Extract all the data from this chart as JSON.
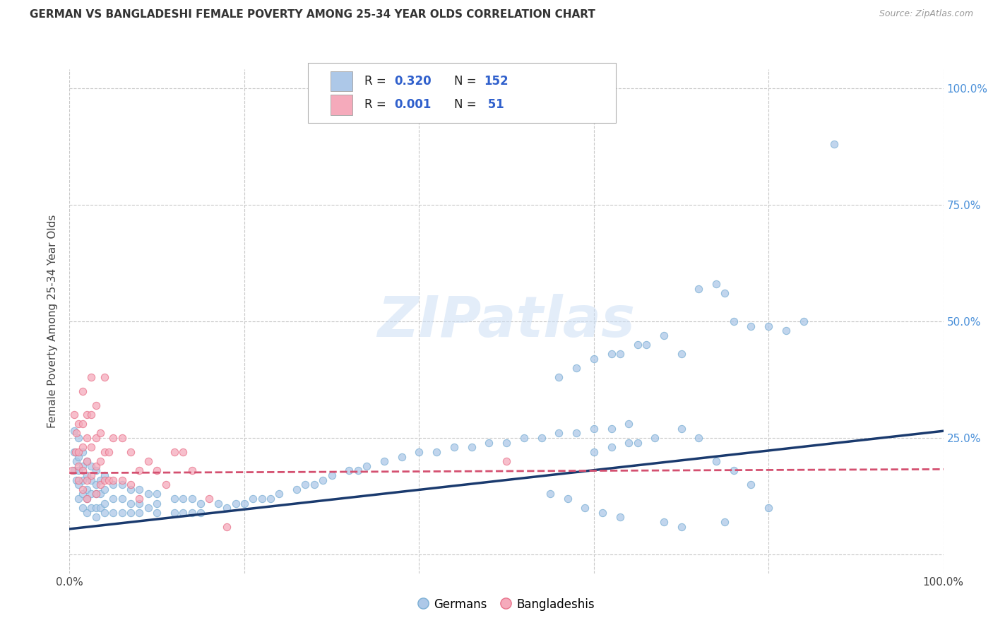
{
  "title": "GERMAN VS BANGLADESHI FEMALE POVERTY AMONG 25-34 YEAR OLDS CORRELATION CHART",
  "source": "Source: ZipAtlas.com",
  "ylabel": "Female Poverty Among 25-34 Year Olds",
  "watermark": "ZIPatlas",
  "blue_color": "#7bafd4",
  "pink_color": "#e8728a",
  "blue_fill": "#adc8e8",
  "pink_fill": "#f5aabb",
  "blue_line_color": "#1a3a6e",
  "pink_line_color": "#d45070",
  "background_color": "#ffffff",
  "grid_color": "#c8c8c8",
  "title_color": "#333333",
  "source_color": "#999999",
  "right_axis_color": "#4a90d9",
  "scatter_alpha": 0.75,
  "scatter_size": 55,
  "xmin": 0.0,
  "xmax": 1.0,
  "ymin": -0.04,
  "ymax": 1.04,
  "german_trend_x": [
    0.0,
    1.0
  ],
  "german_trend_y": [
    0.055,
    0.265
  ],
  "bangla_trend_x": [
    0.0,
    1.0
  ],
  "bangla_trend_y": [
    0.175,
    0.183
  ],
  "german_x": [
    0.005,
    0.005,
    0.005,
    0.008,
    0.008,
    0.01,
    0.01,
    0.01,
    0.01,
    0.01,
    0.015,
    0.015,
    0.015,
    0.015,
    0.015,
    0.02,
    0.02,
    0.02,
    0.02,
    0.02,
    0.025,
    0.025,
    0.025,
    0.025,
    0.03,
    0.03,
    0.03,
    0.03,
    0.03,
    0.035,
    0.035,
    0.035,
    0.04,
    0.04,
    0.04,
    0.04,
    0.05,
    0.05,
    0.05,
    0.06,
    0.06,
    0.06,
    0.07,
    0.07,
    0.07,
    0.08,
    0.08,
    0.08,
    0.09,
    0.09,
    0.1,
    0.1,
    0.1,
    0.12,
    0.12,
    0.13,
    0.13,
    0.14,
    0.14,
    0.15,
    0.15,
    0.17,
    0.18,
    0.19,
    0.2,
    0.21,
    0.22,
    0.23,
    0.24,
    0.26,
    0.27,
    0.28,
    0.29,
    0.3,
    0.32,
    0.33,
    0.34,
    0.36,
    0.38,
    0.4,
    0.42,
    0.44,
    0.46,
    0.48,
    0.5,
    0.52,
    0.54,
    0.56,
    0.58,
    0.6,
    0.62,
    0.64,
    0.56,
    0.58,
    0.6,
    0.62,
    0.63,
    0.65,
    0.66,
    0.68,
    0.7,
    0.72,
    0.74,
    0.75,
    0.76,
    0.78,
    0.8,
    0.82,
    0.84,
    0.6,
    0.62,
    0.64,
    0.65,
    0.67,
    0.7,
    0.72,
    0.74,
    0.76,
    0.78,
    0.55,
    0.57,
    0.59,
    0.61,
    0.63,
    0.68,
    0.7,
    0.75,
    0.8,
    0.875
  ],
  "german_y": [
    0.265,
    0.22,
    0.18,
    0.2,
    0.16,
    0.25,
    0.21,
    0.18,
    0.15,
    0.12,
    0.22,
    0.19,
    0.16,
    0.13,
    0.1,
    0.2,
    0.17,
    0.14,
    0.12,
    0.09,
    0.19,
    0.16,
    0.13,
    0.1,
    0.18,
    0.15,
    0.13,
    0.1,
    0.08,
    0.16,
    0.13,
    0.1,
    0.17,
    0.14,
    0.11,
    0.09,
    0.15,
    0.12,
    0.09,
    0.15,
    0.12,
    0.09,
    0.14,
    0.11,
    0.09,
    0.14,
    0.11,
    0.09,
    0.13,
    0.1,
    0.13,
    0.11,
    0.09,
    0.12,
    0.09,
    0.12,
    0.09,
    0.12,
    0.09,
    0.11,
    0.09,
    0.11,
    0.1,
    0.11,
    0.11,
    0.12,
    0.12,
    0.12,
    0.13,
    0.14,
    0.15,
    0.15,
    0.16,
    0.17,
    0.18,
    0.18,
    0.19,
    0.2,
    0.21,
    0.22,
    0.22,
    0.23,
    0.23,
    0.24,
    0.24,
    0.25,
    0.25,
    0.26,
    0.26,
    0.27,
    0.27,
    0.28,
    0.38,
    0.4,
    0.42,
    0.43,
    0.43,
    0.45,
    0.45,
    0.47,
    0.43,
    0.57,
    0.58,
    0.56,
    0.5,
    0.49,
    0.49,
    0.48,
    0.5,
    0.22,
    0.23,
    0.24,
    0.24,
    0.25,
    0.27,
    0.25,
    0.2,
    0.18,
    0.15,
    0.13,
    0.12,
    0.1,
    0.09,
    0.08,
    0.07,
    0.06,
    0.07,
    0.1,
    0.88
  ],
  "bangla_x": [
    0.003,
    0.005,
    0.007,
    0.008,
    0.01,
    0.01,
    0.01,
    0.01,
    0.015,
    0.015,
    0.015,
    0.015,
    0.015,
    0.02,
    0.02,
    0.02,
    0.02,
    0.02,
    0.025,
    0.025,
    0.025,
    0.025,
    0.03,
    0.03,
    0.03,
    0.03,
    0.035,
    0.035,
    0.035,
    0.04,
    0.04,
    0.04,
    0.045,
    0.045,
    0.05,
    0.05,
    0.06,
    0.06,
    0.07,
    0.07,
    0.08,
    0.08,
    0.09,
    0.1,
    0.11,
    0.12,
    0.13,
    0.14,
    0.16,
    0.18,
    0.5
  ],
  "bangla_y": [
    0.18,
    0.3,
    0.22,
    0.26,
    0.28,
    0.22,
    0.19,
    0.16,
    0.35,
    0.28,
    0.23,
    0.18,
    0.14,
    0.3,
    0.25,
    0.2,
    0.16,
    0.12,
    0.38,
    0.3,
    0.23,
    0.17,
    0.32,
    0.25,
    0.19,
    0.13,
    0.26,
    0.2,
    0.15,
    0.38,
    0.22,
    0.16,
    0.22,
    0.16,
    0.25,
    0.16,
    0.25,
    0.16,
    0.22,
    0.15,
    0.18,
    0.12,
    0.2,
    0.18,
    0.15,
    0.22,
    0.22,
    0.18,
    0.12,
    0.06,
    0.2
  ]
}
